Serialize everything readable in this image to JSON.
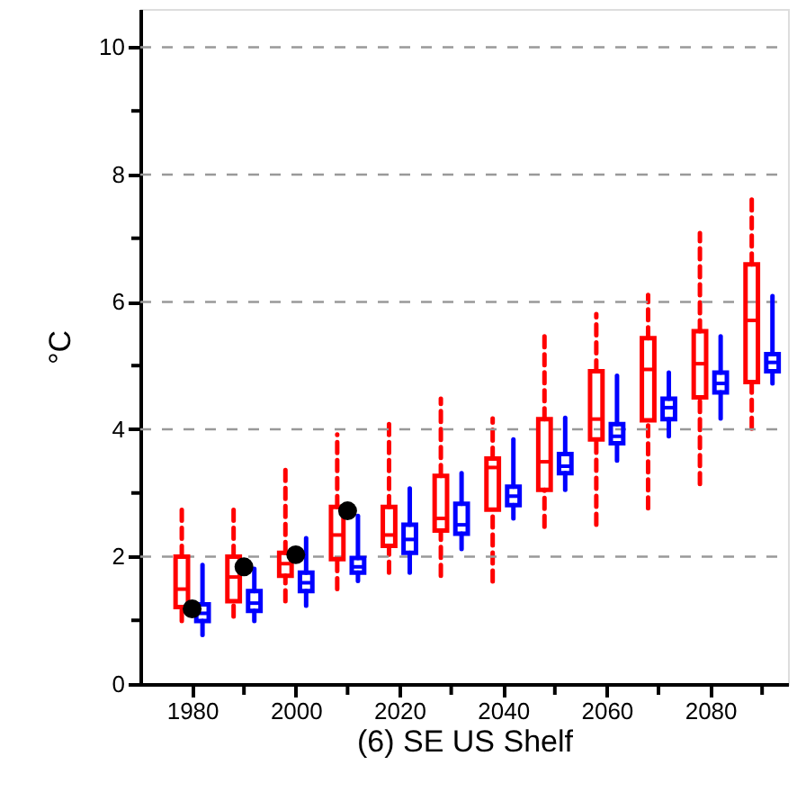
{
  "chart_data": {
    "type": "box",
    "xlabel": "(6) SE US Shelf",
    "ylabel": "°C",
    "xlim": [
      1970,
      2095
    ],
    "ylim": [
      0,
      10.6
    ],
    "xticks": [
      1980,
      {
        "value": 1990,
        "label": null
      },
      2000,
      {
        "value": 2010,
        "label": null
      },
      2020,
      {
        "value": 2030,
        "label": null
      },
      2040,
      {
        "value": 2050,
        "label": null
      },
      2060,
      {
        "value": 2070,
        "label": null
      },
      2080,
      {
        "value": 2090,
        "label": null
      }
    ],
    "yticks": [
      0,
      {
        "value": 1,
        "label": null
      },
      2,
      {
        "value": 3,
        "label": null
      },
      4,
      {
        "value": 5,
        "label": null
      },
      6,
      {
        "value": 7,
        "label": null
      },
      8,
      {
        "value": 9,
        "label": null
      },
      10
    ],
    "grid": "y",
    "series": [
      {
        "type": "box",
        "color": "#ff0000",
        "line_style": "dashed",
        "x": [
          1978,
          1988,
          1998,
          2008,
          2018,
          2028,
          2038,
          2048,
          2058,
          2068,
          2078,
          2088
        ],
        "boxes": [
          {
            "low": 0.99,
            "q1": 1.21,
            "median": 1.49,
            "q3": 2.0,
            "high": 2.74
          },
          {
            "low": 1.06,
            "q1": 1.3,
            "median": 1.68,
            "q3": 2.0,
            "high": 2.81
          },
          {
            "low": 1.3,
            "q1": 1.7,
            "median": 1.89,
            "q3": 2.06,
            "high": 3.38
          },
          {
            "low": 1.49,
            "q1": 1.96,
            "median": 2.34,
            "q3": 2.78,
            "high": 3.92
          },
          {
            "low": 1.75,
            "q1": 2.17,
            "median": 2.34,
            "q3": 2.78,
            "high": 4.16
          },
          {
            "low": 1.7,
            "q1": 2.41,
            "median": 2.6,
            "q3": 3.27,
            "high": 4.48
          },
          {
            "low": 1.61,
            "q1": 2.74,
            "median": 3.4,
            "q3": 3.54,
            "high": 4.17
          },
          {
            "low": 2.47,
            "q1": 3.05,
            "median": 3.49,
            "q3": 4.16,
            "high": 5.5
          },
          {
            "low": 2.5,
            "q1": 3.84,
            "median": 4.16,
            "q3": 4.91,
            "high": 5.81
          },
          {
            "low": 2.76,
            "q1": 4.14,
            "median": 4.94,
            "q3": 5.43,
            "high": 6.11
          },
          {
            "low": 3.14,
            "q1": 4.5,
            "median": 5.03,
            "q3": 5.54,
            "high": 7.08
          },
          {
            "low": 4.01,
            "q1": 4.74,
            "median": 5.71,
            "q3": 6.59,
            "high": 7.71
          }
        ]
      },
      {
        "type": "box",
        "color": "#0000ff",
        "line_style": "solid",
        "x": [
          1982,
          1992,
          2002,
          2012,
          2022,
          2032,
          2042,
          2052,
          2062,
          2072,
          2082,
          2092
        ],
        "boxes": [
          {
            "low": 0.77,
            "q1": 0.99,
            "median": 1.11,
            "q3": 1.25,
            "high": 1.87
          },
          {
            "low": 0.99,
            "q1": 1.15,
            "median": 1.27,
            "q3": 1.46,
            "high": 1.81
          },
          {
            "low": 1.23,
            "q1": 1.46,
            "median": 1.59,
            "q3": 1.75,
            "high": 2.29
          },
          {
            "low": 1.62,
            "q1": 1.75,
            "median": 1.84,
            "q3": 1.98,
            "high": 2.64
          },
          {
            "low": 1.75,
            "q1": 2.06,
            "median": 2.27,
            "q3": 2.5,
            "high": 3.07
          },
          {
            "low": 2.12,
            "q1": 2.36,
            "median": 2.5,
            "q3": 2.83,
            "high": 3.31
          },
          {
            "low": 2.6,
            "q1": 2.81,
            "median": 2.95,
            "q3": 3.1,
            "high": 3.84
          },
          {
            "low": 3.05,
            "q1": 3.31,
            "median": 3.42,
            "q3": 3.61,
            "high": 4.18
          },
          {
            "low": 3.51,
            "q1": 3.78,
            "median": 3.89,
            "q3": 4.08,
            "high": 4.84
          },
          {
            "low": 3.89,
            "q1": 4.16,
            "median": 4.34,
            "q3": 4.48,
            "high": 4.89
          },
          {
            "low": 4.17,
            "q1": 4.58,
            "median": 4.72,
            "q3": 4.89,
            "high": 5.46
          },
          {
            "low": 4.72,
            "q1": 4.91,
            "median": 5.05,
            "q3": 5.18,
            "high": 6.09
          }
        ]
      },
      {
        "type": "scatter",
        "color": "#000000",
        "marker": "circle",
        "x": [
          1980,
          1990,
          2000,
          2010
        ],
        "values": [
          1.18,
          1.84,
          2.03,
          2.72
        ]
      }
    ]
  }
}
